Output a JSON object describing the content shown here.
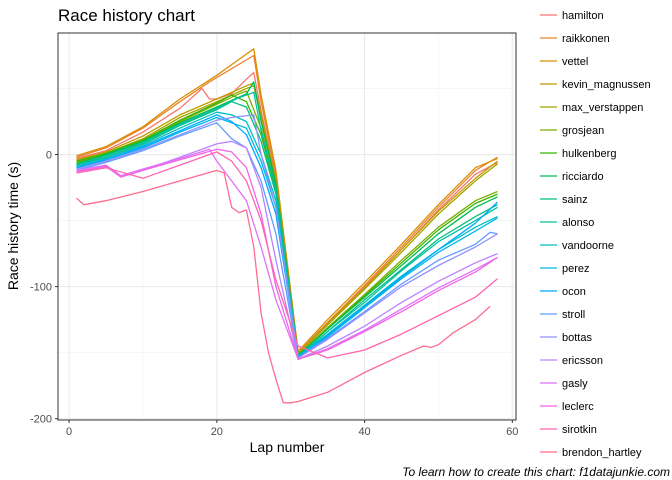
{
  "chart_data": {
    "type": "line",
    "title": "Race history chart",
    "xlabel": "Lap number",
    "ylabel": "Race history time (s)",
    "caption": "To learn how to create this chart: f1datajunkie.com",
    "xlim": [
      -1.5,
      60.5
    ],
    "ylim": [
      -201,
      92
    ],
    "x_ticks": [
      0,
      20,
      40,
      60
    ],
    "y_ticks": [
      -200,
      -100,
      0
    ],
    "grid": true,
    "legend_position": "right",
    "series": [
      {
        "name": "hamilton",
        "color": "#F8766D",
        "x": [
          1,
          5,
          10,
          15,
          18,
          19,
          20,
          22,
          24,
          25,
          26,
          28,
          31,
          35,
          40,
          45,
          50,
          55,
          58
        ],
        "y": [
          -3,
          3,
          17,
          35,
          50,
          42,
          42,
          46,
          57,
          62,
          33,
          -18,
          -150,
          -128,
          -100,
          -72,
          -42,
          -15,
          -6
        ]
      },
      {
        "name": "raikkonen",
        "color": "#EA8331",
        "x": [
          1,
          5,
          10,
          15,
          19,
          22,
          25,
          26,
          28,
          31,
          35,
          40,
          45,
          50,
          55,
          58
        ],
        "y": [
          -2,
          5,
          20,
          40,
          55,
          65,
          75,
          40,
          -15,
          -150,
          -127,
          -99,
          -70,
          -40,
          -12,
          -2
        ]
      },
      {
        "name": "vettel",
        "color": "#D89000",
        "x": [
          1,
          5,
          10,
          15,
          20,
          23,
          25,
          26,
          28,
          31,
          35,
          40,
          45,
          50,
          55,
          58
        ],
        "y": [
          -1,
          6,
          21,
          42,
          60,
          72,
          80,
          45,
          -12,
          -149,
          -125,
          -97,
          -68,
          -38,
          -10,
          -3
        ]
      },
      {
        "name": "kevin_magnussen",
        "color": "#C09B00",
        "x": [
          1,
          5,
          10,
          15,
          20,
          24,
          25,
          26,
          28,
          31,
          35,
          40,
          45,
          50,
          55,
          58
        ],
        "y": [
          -4,
          2,
          14,
          30,
          42,
          52,
          54,
          30,
          -20,
          -151,
          -128,
          -101,
          -72,
          -43,
          -18,
          -5
        ]
      },
      {
        "name": "max_verstappen",
        "color": "#A3A500",
        "x": [
          1,
          5,
          10,
          15,
          20,
          24,
          25,
          26,
          28,
          31,
          35,
          40,
          45,
          50,
          55,
          58
        ],
        "y": [
          -5,
          1,
          12,
          28,
          40,
          50,
          52,
          28,
          -22,
          -151,
          -129,
          -102,
          -74,
          -45,
          -20,
          -7
        ]
      },
      {
        "name": "grosjean",
        "color": "#7CAE00",
        "x": [
          1,
          5,
          10,
          15,
          20,
          23,
          24,
          26,
          28,
          31,
          35,
          40,
          45,
          50,
          55,
          58
        ],
        "y": [
          -6,
          0,
          10,
          25,
          38,
          46,
          48,
          20,
          -25,
          -152,
          -131,
          -106,
          -80,
          -55,
          -35,
          -28
        ]
      },
      {
        "name": "hulkenberg",
        "color": "#39B600",
        "x": [
          1,
          5,
          10,
          15,
          20,
          22,
          24,
          26,
          28,
          31,
          35,
          40,
          45,
          50,
          55,
          58
        ],
        "y": [
          -5,
          1,
          11,
          26,
          39,
          45,
          40,
          15,
          -28,
          -152,
          -132,
          -107,
          -82,
          -57,
          -37,
          -30
        ]
      },
      {
        "name": "ricciardo",
        "color": "#00BB4E",
        "x": [
          1,
          5,
          10,
          15,
          20,
          24,
          25,
          26,
          28,
          31,
          35,
          40,
          45,
          50,
          55,
          58
        ],
        "y": [
          -7,
          0,
          10,
          24,
          36,
          46,
          55,
          25,
          -22,
          -152,
          -132,
          -108,
          -84,
          -60,
          -40,
          -32
        ]
      },
      {
        "name": "sainz",
        "color": "#00BF7D",
        "x": [
          1,
          5,
          10,
          15,
          20,
          22,
          24,
          26,
          28,
          31,
          35,
          40,
          45,
          50,
          55,
          58
        ],
        "y": [
          -8,
          -2,
          8,
          22,
          34,
          40,
          36,
          10,
          -30,
          -153,
          -134,
          -110,
          -87,
          -64,
          -47,
          -38
        ]
      },
      {
        "name": "alonso",
        "color": "#00C1A3",
        "x": [
          1,
          5,
          10,
          15,
          20,
          23,
          25,
          26,
          28,
          31,
          35,
          40,
          45,
          50,
          55,
          58
        ],
        "y": [
          -8,
          -1,
          9,
          23,
          35,
          43,
          47,
          18,
          -26,
          -153,
          -134,
          -112,
          -88,
          -66,
          -50,
          -40
        ]
      },
      {
        "name": "vandoorne",
        "color": "#00BFC4",
        "x": [
          1,
          5,
          10,
          15,
          20,
          22,
          24,
          26,
          28,
          31,
          35,
          40,
          45,
          50,
          55,
          58
        ],
        "y": [
          -9,
          -3,
          7,
          20,
          32,
          30,
          25,
          0,
          -35,
          -153,
          -136,
          -114,
          -92,
          -72,
          -55,
          -47
        ]
      },
      {
        "name": "perez",
        "color": "#00B8E7",
        "x": [
          1,
          5,
          10,
          15,
          20,
          22,
          24,
          26,
          28,
          31,
          35,
          40,
          45,
          50,
          55,
          58
        ],
        "y": [
          -10,
          -4,
          5,
          17,
          28,
          24,
          20,
          -5,
          -40,
          -154,
          -138,
          -116,
          -94,
          -74,
          -58,
          -48
        ]
      },
      {
        "name": "ocon",
        "color": "#00A9FF",
        "x": [
          1,
          5,
          10,
          15,
          20,
          22,
          24,
          26,
          28,
          31,
          35,
          40,
          45,
          50,
          55,
          58
        ],
        "y": [
          -10,
          -4,
          6,
          18,
          30,
          25,
          15,
          -10,
          -45,
          -153,
          -137,
          -115,
          -93,
          -72,
          -52,
          -36
        ]
      },
      {
        "name": "stroll",
        "color": "#619CFF",
        "x": [
          1,
          5,
          10,
          15,
          20,
          22,
          24,
          26,
          28,
          31,
          35,
          40,
          45,
          50,
          55,
          57,
          58
        ],
        "y": [
          -12,
          -6,
          3,
          14,
          24,
          12,
          5,
          -20,
          -60,
          -154,
          -139,
          -119,
          -98,
          -80,
          -68,
          -59,
          -60
        ]
      },
      {
        "name": "bottas",
        "color": "#9590FF",
        "x": [
          1,
          5,
          10,
          15,
          20,
          22,
          25,
          26,
          28,
          31,
          35,
          40,
          45,
          50,
          55,
          58
        ],
        "y": [
          -11,
          -5,
          4,
          15,
          26,
          28,
          30,
          0,
          -40,
          -154,
          -140,
          -120,
          -100,
          -84,
          -70,
          -60
        ]
      },
      {
        "name": "ericsson",
        "color": "#B983FF",
        "x": [
          1,
          5,
          7,
          10,
          15,
          20,
          22,
          24,
          26,
          28,
          31,
          35,
          40,
          45,
          50,
          55,
          58
        ],
        "y": [
          -13,
          -9,
          -17,
          -12,
          -2,
          8,
          10,
          5,
          -25,
          -80,
          -155,
          -145,
          -130,
          -112,
          -96,
          -82,
          -75
        ]
      },
      {
        "name": "gasly",
        "color": "#DE71F9",
        "x": [
          1,
          5,
          7,
          10,
          15,
          19,
          20,
          22,
          24,
          26,
          28,
          31,
          35,
          40,
          45,
          50,
          55,
          58
        ],
        "y": [
          -12,
          -8,
          -16,
          -11,
          -3,
          4,
          -5,
          -20,
          -35,
          -70,
          -110,
          -155,
          -147,
          -133,
          -117,
          -101,
          -87,
          -78
        ]
      },
      {
        "name": "leclerc",
        "color": "#F564E3",
        "x": [
          1,
          5,
          7,
          10,
          15,
          20,
          22,
          24,
          26,
          28,
          31,
          35,
          40,
          45,
          50,
          55,
          58
        ],
        "y": [
          -13,
          -9,
          -17,
          -12,
          -4,
          4,
          2,
          -10,
          -45,
          -100,
          -155,
          -148,
          -134,
          -119,
          -103,
          -89,
          -78
        ]
      },
      {
        "name": "sirotkin",
        "color": "#FF64B0",
        "x": [
          1,
          5,
          10,
          15,
          20,
          22,
          24,
          26,
          28,
          31,
          35,
          40,
          45,
          50,
          55,
          58
        ],
        "y": [
          -14,
          -10,
          -18,
          -8,
          2,
          -5,
          -20,
          -50,
          -95,
          -145,
          -154,
          -148,
          -136,
          -122,
          -108,
          -94
        ]
      },
      {
        "name": "brendon_hartley",
        "color": "#FF6C91",
        "x": [
          1,
          2,
          5,
          10,
          15,
          20,
          21,
          22,
          23,
          24,
          25,
          26,
          27,
          28,
          29,
          30,
          31,
          35,
          40,
          45,
          48,
          49,
          50,
          52,
          55,
          57
        ],
        "y": [
          -33,
          -38,
          -35,
          -28,
          -20,
          -12,
          -14,
          -40,
          -44,
          -42,
          -70,
          -120,
          -150,
          -170,
          -188,
          -188,
          -187,
          -180,
          -165,
          -152,
          -145,
          -146,
          -144,
          -135,
          -125,
          -115
        ]
      }
    ]
  }
}
